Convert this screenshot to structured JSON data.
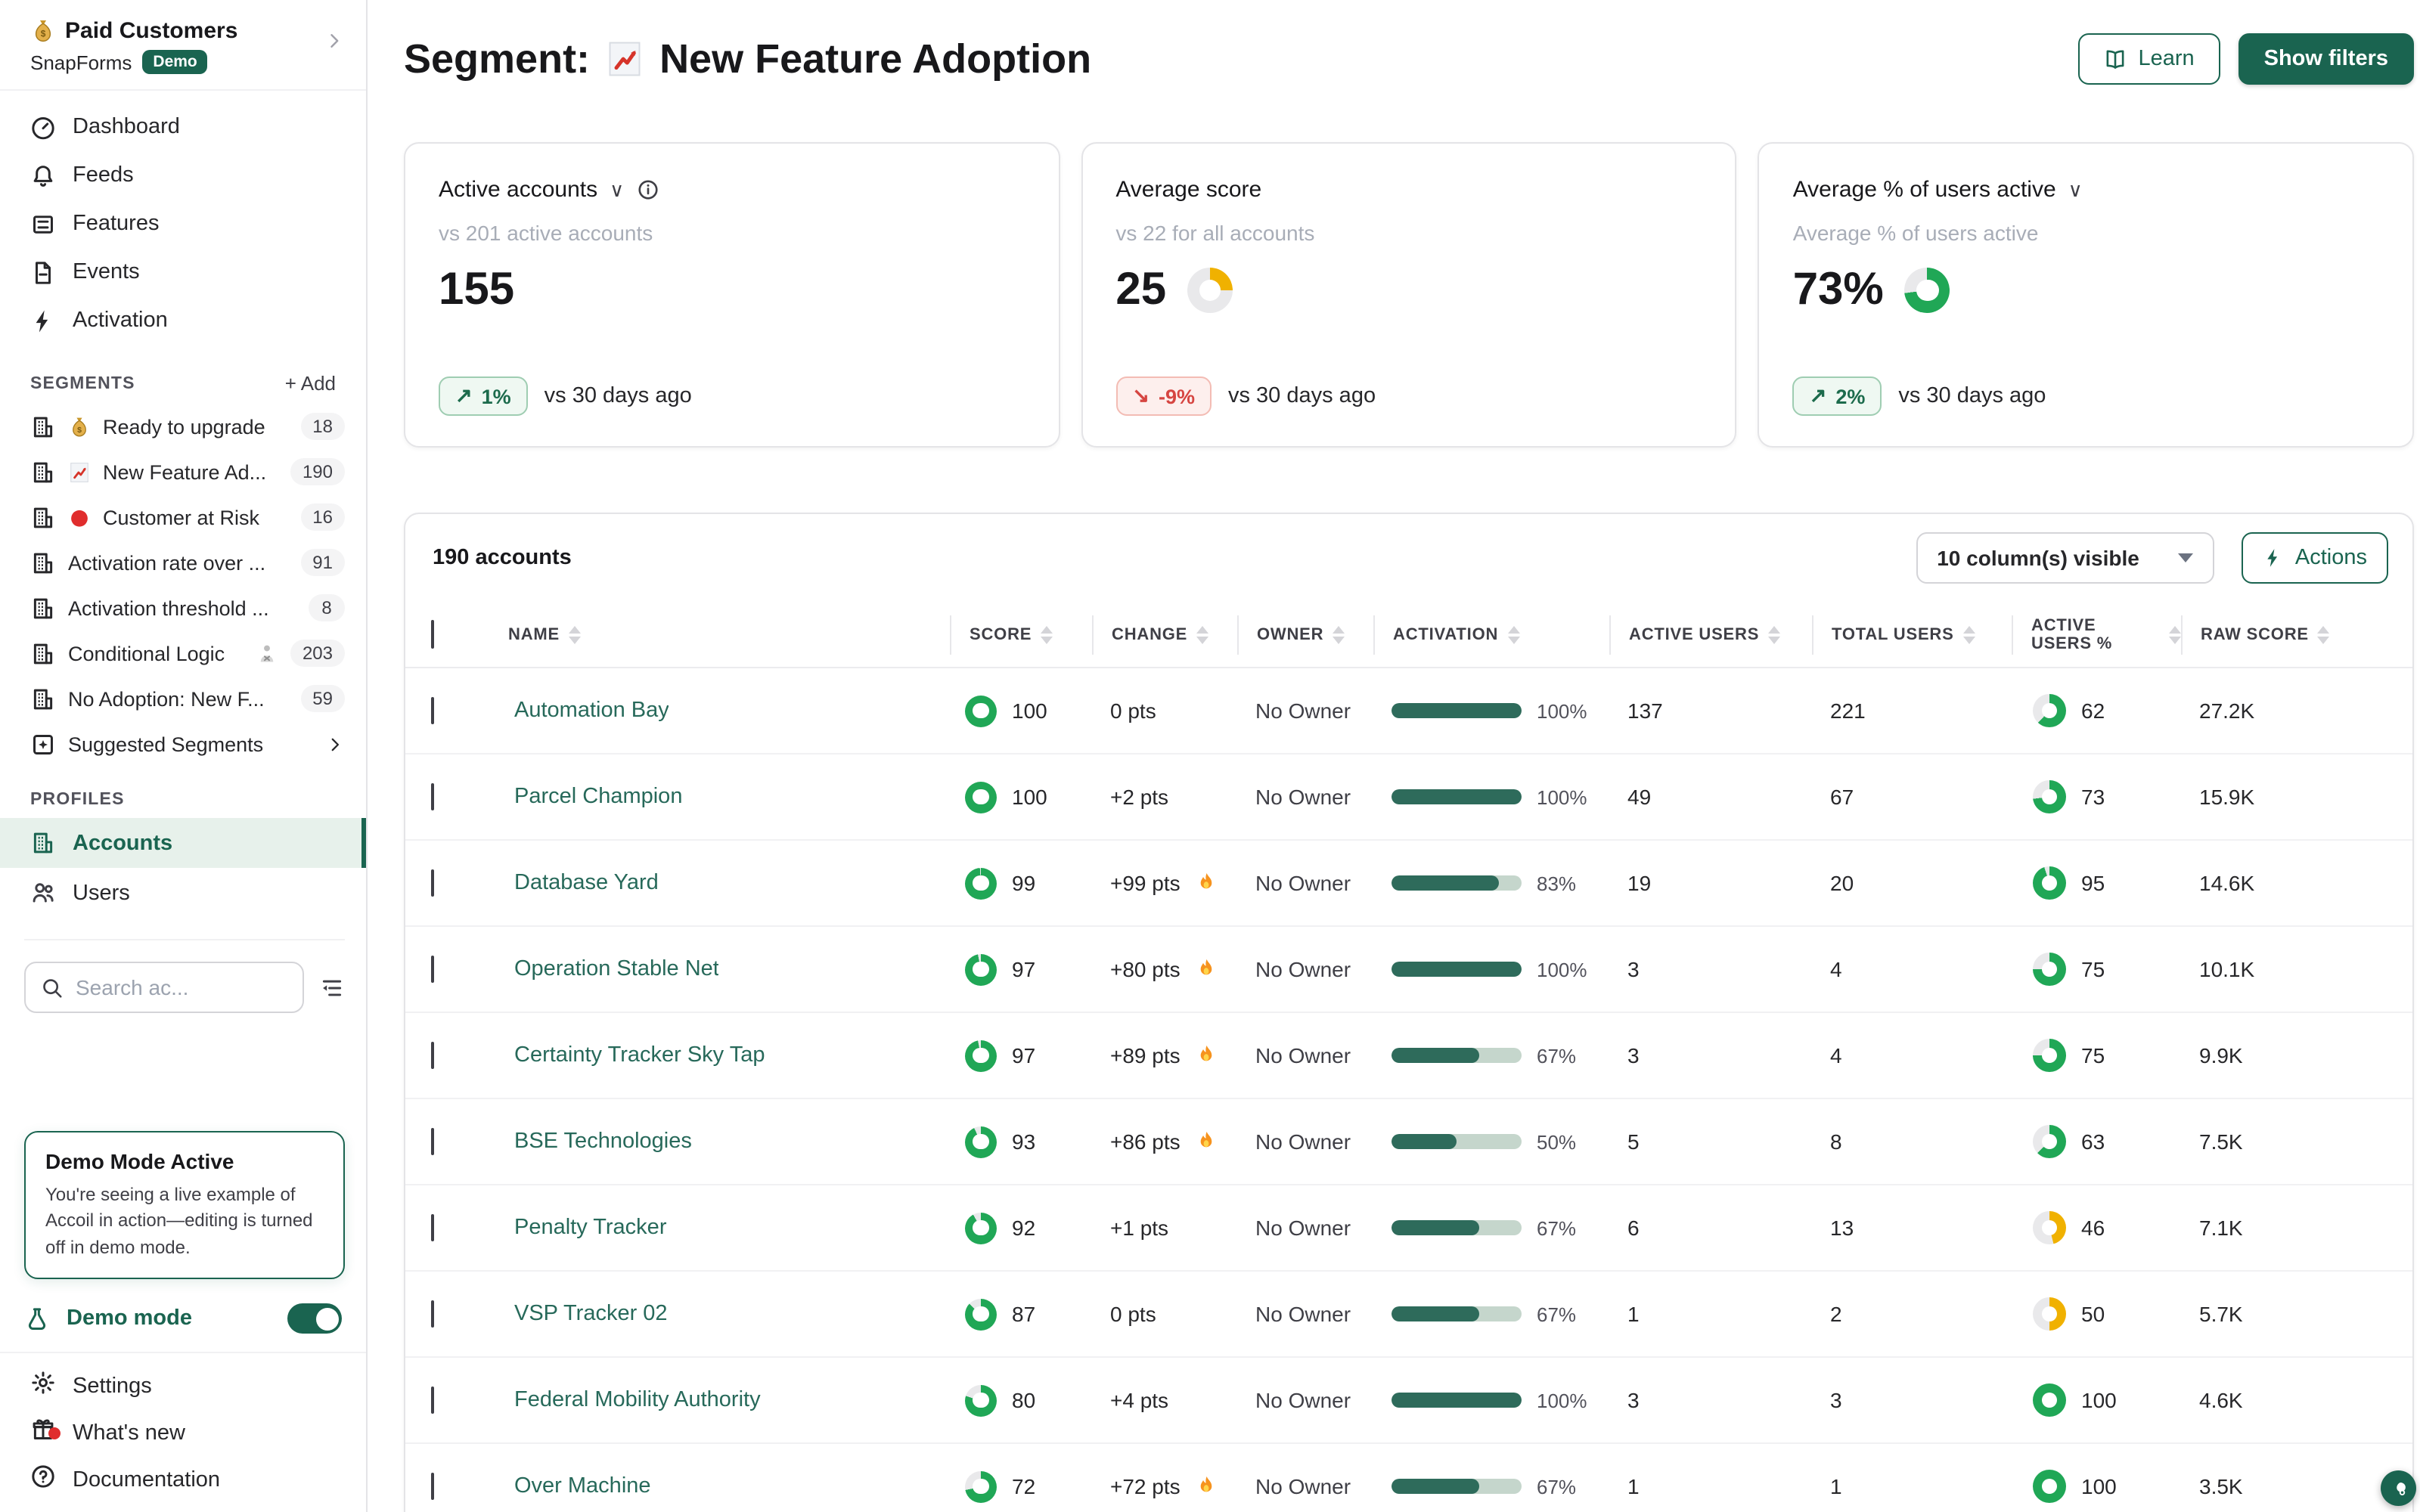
{
  "colors": {
    "brand_green": "#1A6450",
    "donut_green": "#20A756",
    "donut_yellow": "#F0B100",
    "activation_fill": "#2E6B5B",
    "badge_up_text": "#1C6B4C",
    "badge_down_text": "#D64541",
    "link_green": "#27695A"
  },
  "sidebar": {
    "workspace": {
      "icon": "money-bag",
      "name": "Paid Customers",
      "product": "SnapForms",
      "badge": "Demo"
    },
    "nav": [
      {
        "icon": "gauge",
        "label": "Dashboard"
      },
      {
        "icon": "bell",
        "label": "Feeds"
      },
      {
        "icon": "features",
        "label": "Features"
      },
      {
        "icon": "doc",
        "label": "Events"
      },
      {
        "icon": "bolt",
        "label": "Activation"
      }
    ],
    "segments_title": "SEGMENTS",
    "segments_add": "+ Add",
    "segments": [
      {
        "icon": "building",
        "emoji": "money-bag",
        "label": "Ready to upgrade",
        "count": "18"
      },
      {
        "icon": "building",
        "emoji": "chart-up",
        "label": "New Feature Ad...",
        "count": "190"
      },
      {
        "icon": "building",
        "emoji": "red-circle",
        "label": "Customer at Risk",
        "count": "16"
      },
      {
        "icon": "building",
        "label": "Activation rate over ...",
        "count": "91"
      },
      {
        "icon": "building",
        "label": "Activation threshold ...",
        "count": "8"
      },
      {
        "icon": "building",
        "label": "Conditional Logic",
        "emoji_after": "person-no",
        "count": "203"
      },
      {
        "icon": "building",
        "label": "No Adoption: New F...",
        "count": "59"
      }
    ],
    "suggested": {
      "icon": "sparkle-box",
      "label": "Suggested Segments"
    },
    "profiles_title": "PROFILES",
    "profiles": [
      {
        "icon": "building",
        "label": "Accounts",
        "active": true
      },
      {
        "icon": "users",
        "label": "Users",
        "active": false
      }
    ],
    "search_placeholder": "Search ac...",
    "demo_box": {
      "title": "Demo Mode Active",
      "body": "You're seeing a live example of Accoil in action—editing is turned off in demo mode."
    },
    "demo_mode": {
      "label": "Demo mode",
      "enabled": true
    },
    "footer": [
      {
        "icon": "gear",
        "label": "Settings"
      },
      {
        "icon": "gift",
        "label": "What's new",
        "dot": true
      },
      {
        "icon": "question",
        "label": "Documentation"
      }
    ]
  },
  "header": {
    "title_prefix": "Segment:",
    "title_icon": "chart-up",
    "title": "New Feature Adoption",
    "learn_label": "Learn",
    "show_filters_label": "Show filters"
  },
  "stat_cards": [
    {
      "title": "Active accounts",
      "dropdown": true,
      "info": true,
      "subtitle": "vs 201 active accounts",
      "value": "155",
      "badge": {
        "direction": "up",
        "label": "1%"
      },
      "note": "vs 30 days ago"
    },
    {
      "title": "Average score",
      "dropdown": false,
      "info": false,
      "subtitle": "vs 22 for all accounts",
      "value": "25",
      "donut": {
        "percent": 25,
        "color": "#F0B100"
      },
      "badge": {
        "direction": "down",
        "label": "-9%"
      },
      "note": "vs 30 days ago"
    },
    {
      "title": "Average % of users active",
      "dropdown": true,
      "info": false,
      "subtitle": "Average % of users active",
      "value": "73%",
      "donut": {
        "percent": 73,
        "color": "#20A756"
      },
      "badge": {
        "direction": "up",
        "label": "2%"
      },
      "note": "vs 30 days ago"
    }
  ],
  "table": {
    "summary": "190 accounts",
    "columns_button": "10 column(s) visible",
    "actions_label": "Actions",
    "headers": [
      "NAME",
      "SCORE",
      "CHANGE",
      "OWNER",
      "ACTIVATION",
      "ACTIVE USERS",
      "TOTAL USERS",
      "ACTIVE USERS %",
      "RAW SCORE"
    ],
    "rows": [
      {
        "name": "Automation Bay",
        "score": 100,
        "change": "0 pts",
        "fire": false,
        "owner": "No Owner",
        "activation_label": "100%",
        "activation_pct": 100,
        "active_users": "137",
        "total_users": "221",
        "active_pct": 62,
        "active_pct_color": "green",
        "raw_score": "27.2K"
      },
      {
        "name": "Parcel Champion",
        "score": 100,
        "change": "+2 pts",
        "fire": false,
        "owner": "No Owner",
        "activation_label": "100%",
        "activation_pct": 100,
        "active_users": "49",
        "total_users": "67",
        "active_pct": 73,
        "active_pct_color": "green",
        "raw_score": "15.9K"
      },
      {
        "name": "Database Yard",
        "score": 99,
        "change": "+99 pts",
        "fire": true,
        "owner": "No Owner",
        "activation_label": "83%",
        "activation_pct": 83,
        "active_users": "19",
        "total_users": "20",
        "active_pct": 95,
        "active_pct_color": "green",
        "raw_score": "14.6K"
      },
      {
        "name": "Operation Stable Net",
        "score": 97,
        "change": "+80 pts",
        "fire": true,
        "owner": "No Owner",
        "activation_label": "100%",
        "activation_pct": 100,
        "active_users": "3",
        "total_users": "4",
        "active_pct": 75,
        "active_pct_color": "green",
        "raw_score": "10.1K"
      },
      {
        "name": "Certainty Tracker Sky Tap",
        "score": 97,
        "change": "+89 pts",
        "fire": true,
        "owner": "No Owner",
        "activation_label": "67%",
        "activation_pct": 67,
        "active_users": "3",
        "total_users": "4",
        "active_pct": 75,
        "active_pct_color": "green",
        "raw_score": "9.9K"
      },
      {
        "name": "BSE Technologies",
        "score": 93,
        "change": "+86 pts",
        "fire": true,
        "owner": "No Owner",
        "activation_label": "50%",
        "activation_pct": 50,
        "active_users": "5",
        "total_users": "8",
        "active_pct": 63,
        "active_pct_color": "green",
        "raw_score": "7.5K"
      },
      {
        "name": "Penalty Tracker",
        "score": 92,
        "change": "+1 pts",
        "fire": false,
        "owner": "No Owner",
        "activation_label": "67%",
        "activation_pct": 67,
        "active_users": "6",
        "total_users": "13",
        "active_pct": 46,
        "active_pct_color": "yellow",
        "raw_score": "7.1K"
      },
      {
        "name": "VSP Tracker 02",
        "score": 87,
        "change": "0 pts",
        "fire": false,
        "owner": "No Owner",
        "activation_label": "67%",
        "activation_pct": 67,
        "active_users": "1",
        "total_users": "2",
        "active_pct": 50,
        "active_pct_color": "yellow",
        "raw_score": "5.7K"
      },
      {
        "name": "Federal Mobility Authority",
        "score": 80,
        "change": "+4 pts",
        "fire": false,
        "owner": "No Owner",
        "activation_label": "100%",
        "activation_pct": 100,
        "active_users": "3",
        "total_users": "3",
        "active_pct": 100,
        "active_pct_color": "green",
        "raw_score": "4.6K"
      },
      {
        "name": "Over Machine",
        "score": 72,
        "change": "+72 pts",
        "fire": true,
        "owner": "No Owner",
        "activation_label": "67%",
        "activation_pct": 67,
        "active_users": "1",
        "total_users": "1",
        "active_pct": 100,
        "active_pct_color": "green",
        "raw_score": "3.5K"
      }
    ]
  }
}
